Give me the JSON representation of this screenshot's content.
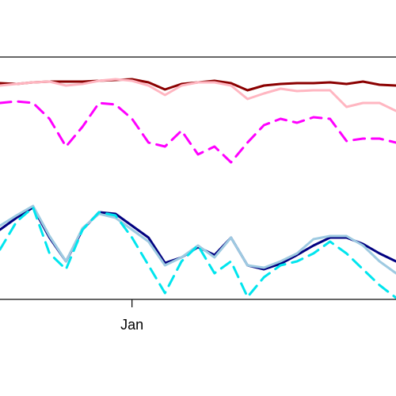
{
  "chart_data": {
    "type": "line",
    "categories": [
      null,
      null,
      null,
      null,
      null,
      null,
      null,
      null,
      "Jan",
      null,
      null,
      null,
      null,
      null,
      null,
      null,
      null,
      null,
      null,
      null,
      null,
      null,
      null,
      null,
      null
    ],
    "ylim": [
      0,
      306
    ],
    "series": [
      {
        "color": "#8b0000",
        "dash": false,
        "values": [
          273,
          272,
          274,
          275,
          275,
          275,
          276,
          277,
          278,
          274,
          265,
          272,
          274,
          276,
          273,
          264,
          270,
          272,
          273,
          273,
          274,
          272,
          275,
          271,
          270
        ]
      },
      {
        "color": "#ffb6c1",
        "dash": false,
        "values": [
          270,
          272,
          274,
          275,
          270,
          272,
          276,
          278,
          276,
          270,
          258,
          270,
          274,
          274,
          270,
          253,
          260,
          266,
          263,
          264,
          264,
          243,
          248,
          248,
          238
        ]
      },
      {
        "color": "#ff00ff",
        "dash": true,
        "values": [
          248,
          250,
          248,
          228,
          193,
          218,
          248,
          246,
          228,
          198,
          193,
          213,
          183,
          193,
          173,
          198,
          220,
          228,
          223,
          230,
          228,
          200,
          203,
          203,
          198
        ]
      },
      {
        "color": "#000080",
        "dash": false,
        "values": [
          88,
          103,
          116,
          78,
          48,
          88,
          110,
          108,
          93,
          78,
          46,
          53,
          66,
          56,
          78,
          43,
          38,
          45,
          56,
          68,
          78,
          78,
          70,
          58,
          48
        ]
      },
      {
        "color": "#9ecae1",
        "dash": false,
        "values": [
          93,
          106,
          118,
          80,
          48,
          90,
          108,
          103,
          88,
          73,
          43,
          53,
          68,
          53,
          78,
          43,
          40,
          48,
          58,
          76,
          80,
          80,
          68,
          48,
          33
        ]
      },
      {
        "color": "#00e5ee",
        "dash": true,
        "values": [
          63,
          98,
          116,
          58,
          38,
          88,
          110,
          106,
          78,
          43,
          8,
          48,
          68,
          33,
          48,
          3,
          28,
          43,
          48,
          58,
          73,
          58,
          38,
          18,
          2
        ]
      }
    ]
  }
}
